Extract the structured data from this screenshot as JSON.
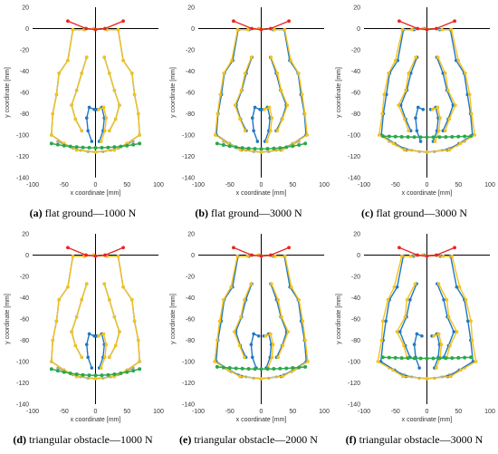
{
  "colors": {
    "red": "#e8251f",
    "yellow": "#f5c21b",
    "blue": "#1f77c4",
    "green": "#2aa84a",
    "gray": "#a8a8a8",
    "olive": "#8a9a3c"
  },
  "labels": {
    "x": "x coordinate [mm]",
    "y": "y coordinate [mm]"
  },
  "panels": [
    {
      "letter": "(a)",
      "text": "flat ground—1000 N"
    },
    {
      "letter": "(b)",
      "text": "flat ground—3000 N"
    },
    {
      "letter": "(c)",
      "text": "flat ground—3000 N"
    },
    {
      "letter": "(d)",
      "text": "triangular obstacle—1000 N"
    },
    {
      "letter": "(e)",
      "text": "triangular obstacle—2000 N"
    },
    {
      "letter": "(f)",
      "text": "triangular obstacle—3000 N"
    }
  ],
  "chart_data": [
    {
      "type": "line",
      "title": "",
      "xlabel": "x coordinate [mm]",
      "ylabel": "y coordinate [mm]",
      "xlim": [
        -100,
        100
      ],
      "ylim": [
        -140,
        20
      ],
      "xticks": [
        -100,
        -50,
        0,
        50,
        100
      ],
      "yticks": [
        20,
        0,
        -20,
        -40,
        -60,
        -80,
        -100,
        -120,
        -140
      ],
      "dx": 0,
      "green_y": -108,
      "green_sag": 4,
      "loop_shift": 0
    },
    {
      "type": "line",
      "title": "",
      "xlabel": "x coordinate [mm]",
      "ylabel": "y coordinate [mm]",
      "xlim": [
        -100,
        100
      ],
      "ylim": [
        -140,
        20
      ],
      "xticks": [
        -100,
        -50,
        0,
        50,
        100
      ],
      "yticks": [
        20,
        0,
        -20,
        -40,
        -60,
        -80,
        -100,
        -120,
        -140
      ],
      "dx": 3,
      "green_y": -108,
      "green_sag": 5,
      "loop_shift": 0
    },
    {
      "type": "line",
      "title": "",
      "xlabel": "x coordinate [mm]",
      "ylabel": "y coordinate [mm]",
      "xlim": [
        -100,
        100
      ],
      "ylim": [
        -140,
        20
      ],
      "xticks": [
        -100,
        -50,
        0,
        50,
        100
      ],
      "yticks": [
        20,
        0,
        -20,
        -40,
        -60,
        -80,
        -100,
        -120,
        -140
      ],
      "dx": 6,
      "green_y": -101,
      "green_sag": 1,
      "loop_shift": 4
    },
    {
      "type": "line",
      "title": "",
      "xlabel": "x coordinate [mm]",
      "ylabel": "y coordinate [mm]",
      "xlim": [
        -100,
        100
      ],
      "ylim": [
        -140,
        20
      ],
      "xticks": [
        -100,
        -50,
        0,
        50,
        100
      ],
      "yticks": [
        20,
        0,
        -20,
        -40,
        -60,
        -80,
        -100,
        -120,
        -140
      ],
      "dx": 0,
      "green_y": -107,
      "green_sag": 6,
      "loop_shift": 0
    },
    {
      "type": "line",
      "title": "",
      "xlabel": "x coordinate [mm]",
      "ylabel": "y coordinate [mm]",
      "xlim": [
        -100,
        100
      ],
      "ylim": [
        -140,
        20
      ],
      "xticks": [
        -100,
        -50,
        0,
        50,
        100
      ],
      "yticks": [
        20,
        0,
        -20,
        -40,
        -60,
        -80,
        -100,
        -120,
        -140
      ],
      "dx": 4,
      "green_y": -105,
      "green_sag": 2,
      "loop_shift": 2
    },
    {
      "type": "line",
      "title": "",
      "xlabel": "x coordinate [mm]",
      "ylabel": "y coordinate [mm]",
      "xlim": [
        -100,
        100
      ],
      "ylim": [
        -140,
        20
      ],
      "xticks": [
        -100,
        -50,
        0,
        50,
        100
      ],
      "yticks": [
        20,
        0,
        -20,
        -40,
        -60,
        -80,
        -100,
        -120,
        -140
      ],
      "dx": 8,
      "green_y": -96,
      "green_sag": 1,
      "loop_shift": 6
    }
  ]
}
